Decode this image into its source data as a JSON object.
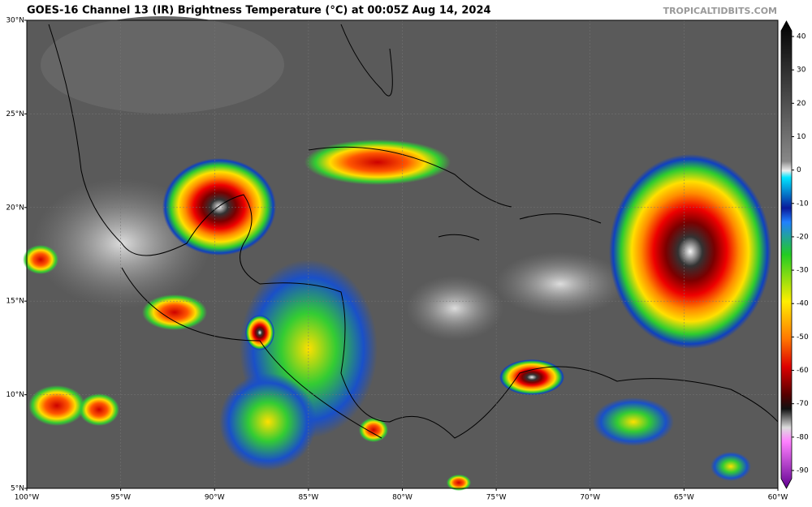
{
  "header": {
    "title": "GOES-16 Channel 13 (IR) Brightness Temperature (°C) at 00:05Z Aug 14, 2024",
    "credit": "TROPICALTIDBITS.COM"
  },
  "map": {
    "lat_labels": [
      "30°N",
      "25°N",
      "20°N",
      "15°N",
      "10°N",
      "5°N"
    ],
    "lon_labels": [
      "100°W",
      "95°W",
      "90°W",
      "85°W",
      "80°W",
      "75°W",
      "70°W",
      "65°W",
      "60°W"
    ]
  },
  "colorbar": {
    "ticks": [
      "40",
      "30",
      "20",
      "10",
      "0",
      "-10",
      "-20",
      "-30",
      "-40",
      "-50",
      "-60",
      "-70",
      "-80",
      "-90"
    ]
  }
}
